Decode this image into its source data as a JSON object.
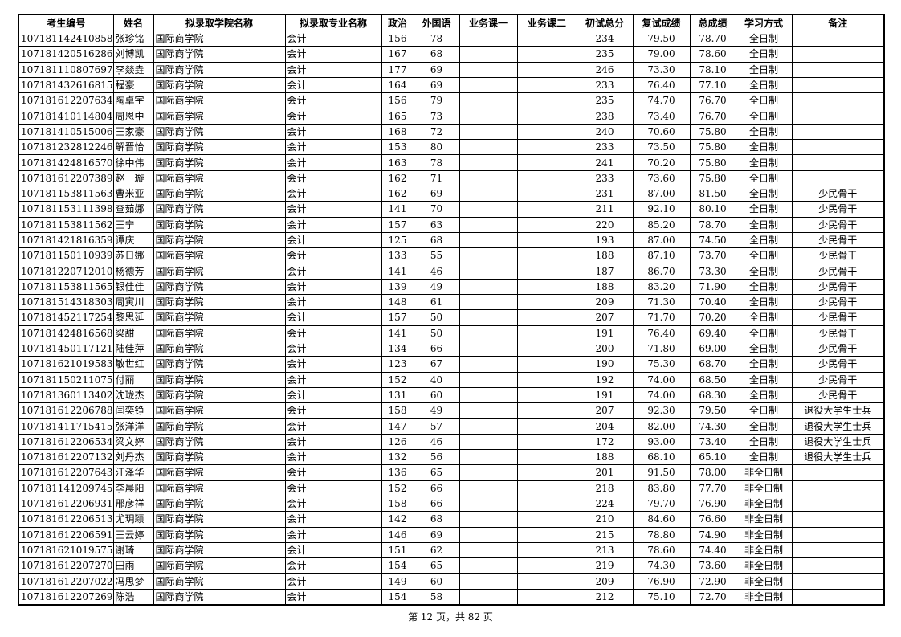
{
  "table": {
    "headers": [
      "考生编号",
      "姓名",
      "拟录取学院名称",
      "拟录取专业名称",
      "政治",
      "外国语",
      "业务课一",
      "业务课二",
      "初试总分",
      "复试成绩",
      "总成绩",
      "学习方式",
      "备注"
    ],
    "rows": [
      [
        "107181142410858",
        "张珍铭",
        "国际商学院",
        "会计",
        "156",
        "78",
        null,
        null,
        "234",
        "79.50",
        "78.70",
        "全日制",
        null
      ],
      [
        "107181420516286",
        "刘博凯",
        "国际商学院",
        "会计",
        "167",
        "68",
        null,
        null,
        "235",
        "79.00",
        "78.60",
        "全日制",
        null
      ],
      [
        "107181110807697",
        "李燚垚",
        "国际商学院",
        "会计",
        "177",
        "69",
        null,
        null,
        "246",
        "73.30",
        "78.10",
        "全日制",
        null
      ],
      [
        "107181432616815",
        "程豪",
        "国际商学院",
        "会计",
        "164",
        "69",
        null,
        null,
        "233",
        "76.40",
        "77.10",
        "全日制",
        null
      ],
      [
        "107181612207634",
        "陶卓宇",
        "国际商学院",
        "会计",
        "156",
        "79",
        null,
        null,
        "235",
        "74.70",
        "76.70",
        "全日制",
        null
      ],
      [
        "107181410114804",
        "周恩中",
        "国际商学院",
        "会计",
        "165",
        "73",
        null,
        null,
        "238",
        "73.40",
        "76.70",
        "全日制",
        null
      ],
      [
        "107181410515006",
        "王家豪",
        "国际商学院",
        "会计",
        "168",
        "72",
        null,
        null,
        "240",
        "70.60",
        "75.80",
        "全日制",
        null
      ],
      [
        "107181232812246",
        "解晋怡",
        "国际商学院",
        "会计",
        "153",
        "80",
        null,
        null,
        "233",
        "73.50",
        "75.80",
        "全日制",
        null
      ],
      [
        "107181424816570",
        "徐中伟",
        "国际商学院",
        "会计",
        "163",
        "78",
        null,
        null,
        "241",
        "70.20",
        "75.80",
        "全日制",
        null
      ],
      [
        "107181612207389",
        "赵一璇",
        "国际商学院",
        "会计",
        "162",
        "71",
        null,
        null,
        "233",
        "73.60",
        "75.80",
        "全日制",
        null
      ],
      [
        "107181153811563",
        "曹米亚",
        "国际商学院",
        "会计",
        "162",
        "69",
        null,
        null,
        "231",
        "87.00",
        "81.50",
        "全日制",
        "少民骨干"
      ],
      [
        "107181153111398",
        "查茹娜",
        "国际商学院",
        "会计",
        "141",
        "70",
        null,
        null,
        "211",
        "92.10",
        "80.10",
        "全日制",
        "少民骨干"
      ],
      [
        "107181153811562",
        "王宁",
        "国际商学院",
        "会计",
        "157",
        "63",
        null,
        null,
        "220",
        "85.20",
        "78.70",
        "全日制",
        "少民骨干"
      ],
      [
        "107181421816359",
        "谭庆",
        "国际商学院",
        "会计",
        "125",
        "68",
        null,
        null,
        "193",
        "87.00",
        "74.50",
        "全日制",
        "少民骨干"
      ],
      [
        "107181150110939",
        "苏日娜",
        "国际商学院",
        "会计",
        "133",
        "55",
        null,
        null,
        "188",
        "87.10",
        "73.70",
        "全日制",
        "少民骨干"
      ],
      [
        "107181220712010",
        "杨德芳",
        "国际商学院",
        "会计",
        "141",
        "46",
        null,
        null,
        "187",
        "86.70",
        "73.30",
        "全日制",
        "少民骨干"
      ],
      [
        "107181153811565",
        "银佳佳",
        "国际商学院",
        "会计",
        "139",
        "49",
        null,
        null,
        "188",
        "83.20",
        "71.90",
        "全日制",
        "少民骨干"
      ],
      [
        "107181514318303",
        "周寅川",
        "国际商学院",
        "会计",
        "148",
        "61",
        null,
        null,
        "209",
        "71.30",
        "70.40",
        "全日制",
        "少民骨干"
      ],
      [
        "107181452117254",
        "黎思延",
        "国际商学院",
        "会计",
        "157",
        "50",
        null,
        null,
        "207",
        "71.70",
        "70.20",
        "全日制",
        "少民骨干"
      ],
      [
        "107181424816568",
        "梁甜",
        "国际商学院",
        "会计",
        "141",
        "50",
        null,
        null,
        "191",
        "76.40",
        "69.40",
        "全日制",
        "少民骨干"
      ],
      [
        "107181450117121",
        "陆佳萍",
        "国际商学院",
        "会计",
        "134",
        "66",
        null,
        null,
        "200",
        "71.80",
        "69.00",
        "全日制",
        "少民骨干"
      ],
      [
        "107181621019583",
        "敏世红",
        "国际商学院",
        "会计",
        "123",
        "67",
        null,
        null,
        "190",
        "75.30",
        "68.70",
        "全日制",
        "少民骨干"
      ],
      [
        "107181150211075",
        "付丽",
        "国际商学院",
        "会计",
        "152",
        "40",
        null,
        null,
        "192",
        "74.00",
        "68.50",
        "全日制",
        "少民骨干"
      ],
      [
        "107181360113402",
        "沈珑杰",
        "国际商学院",
        "会计",
        "131",
        "60",
        null,
        null,
        "191",
        "74.00",
        "68.30",
        "全日制",
        "少民骨干"
      ],
      [
        "107181612206788",
        "闫奕铮",
        "国际商学院",
        "会计",
        "158",
        "49",
        null,
        null,
        "207",
        "92.30",
        "79.50",
        "全日制",
        "退役大学生士兵"
      ],
      [
        "107181411715415",
        "张洋洋",
        "国际商学院",
        "会计",
        "147",
        "57",
        null,
        null,
        "204",
        "82.00",
        "74.30",
        "全日制",
        "退役大学生士兵"
      ],
      [
        "107181612206534",
        "梁文婷",
        "国际商学院",
        "会计",
        "126",
        "46",
        null,
        null,
        "172",
        "93.00",
        "73.40",
        "全日制",
        "退役大学生士兵"
      ],
      [
        "107181612207132",
        "刘丹杰",
        "国际商学院",
        "会计",
        "132",
        "56",
        null,
        null,
        "188",
        "68.10",
        "65.10",
        "全日制",
        "退役大学生士兵"
      ],
      [
        "107181612207643",
        "汪泽华",
        "国际商学院",
        "会计",
        "136",
        "65",
        null,
        null,
        "201",
        "91.50",
        "78.00",
        "非全日制",
        null
      ],
      [
        "107181141209745",
        "李晨阳",
        "国际商学院",
        "会计",
        "152",
        "66",
        null,
        null,
        "218",
        "83.80",
        "77.70",
        "非全日制",
        null
      ],
      [
        "107181612206931",
        "邢彦祥",
        "国际商学院",
        "会计",
        "158",
        "66",
        null,
        null,
        "224",
        "79.70",
        "76.90",
        "非全日制",
        null
      ],
      [
        "107181612206513",
        "尤玥颖",
        "国际商学院",
        "会计",
        "142",
        "68",
        null,
        null,
        "210",
        "84.60",
        "76.60",
        "非全日制",
        null
      ],
      [
        "107181612206591",
        "王云婷",
        "国际商学院",
        "会计",
        "146",
        "69",
        null,
        null,
        "215",
        "78.80",
        "74.90",
        "非全日制",
        null
      ],
      [
        "107181621019575",
        "谢琦",
        "国际商学院",
        "会计",
        "151",
        "62",
        null,
        null,
        "213",
        "78.60",
        "74.40",
        "非全日制",
        null
      ],
      [
        "107181612207270",
        "田雨",
        "国际商学院",
        "会计",
        "154",
        "65",
        null,
        null,
        "219",
        "74.30",
        "73.60",
        "非全日制",
        null
      ],
      [
        "107181612207022",
        "冯思梦",
        "国际商学院",
        "会计",
        "149",
        "60",
        null,
        null,
        "209",
        "76.90",
        "72.90",
        "非全日制",
        null
      ],
      [
        "107181612207269",
        "陈浩",
        "国际商学院",
        "会计",
        "154",
        "58",
        null,
        null,
        "212",
        "75.10",
        "72.70",
        "非全日制",
        null
      ]
    ]
  },
  "footer": "第 12 页，共 82 页"
}
